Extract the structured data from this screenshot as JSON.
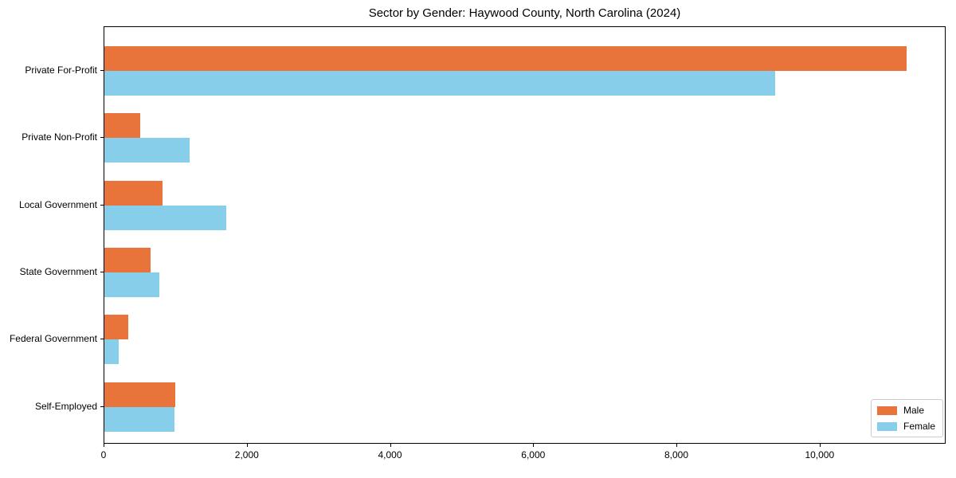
{
  "chart_data": {
    "type": "bar",
    "orientation": "horizontal",
    "title": "Sector by Gender: Haywood County, North Carolina (2024)",
    "categories": [
      "Private For-Profit",
      "Private Non-Profit",
      "Local Government",
      "State Government",
      "Federal Government",
      "Self-Employed"
    ],
    "series": [
      {
        "name": "Male",
        "color": "#e8743b",
        "values": [
          11200,
          500,
          810,
          640,
          330,
          990
        ]
      },
      {
        "name": "Female",
        "color": "#87ceeb",
        "values": [
          9370,
          1190,
          1700,
          770,
          200,
          980
        ]
      }
    ],
    "xlim": [
      0,
      11760
    ],
    "xticks": [
      0,
      2000,
      4000,
      6000,
      8000,
      10000
    ],
    "xtick_labels": [
      "0",
      "2,000",
      "4,000",
      "6,000",
      "8,000",
      "10,000"
    ],
    "xlabel": "",
    "ylabel": "",
    "grid": false,
    "legend_position": "lower right",
    "frame": "full-box",
    "background_color": "#ffffff",
    "text_color": "#000000"
  }
}
